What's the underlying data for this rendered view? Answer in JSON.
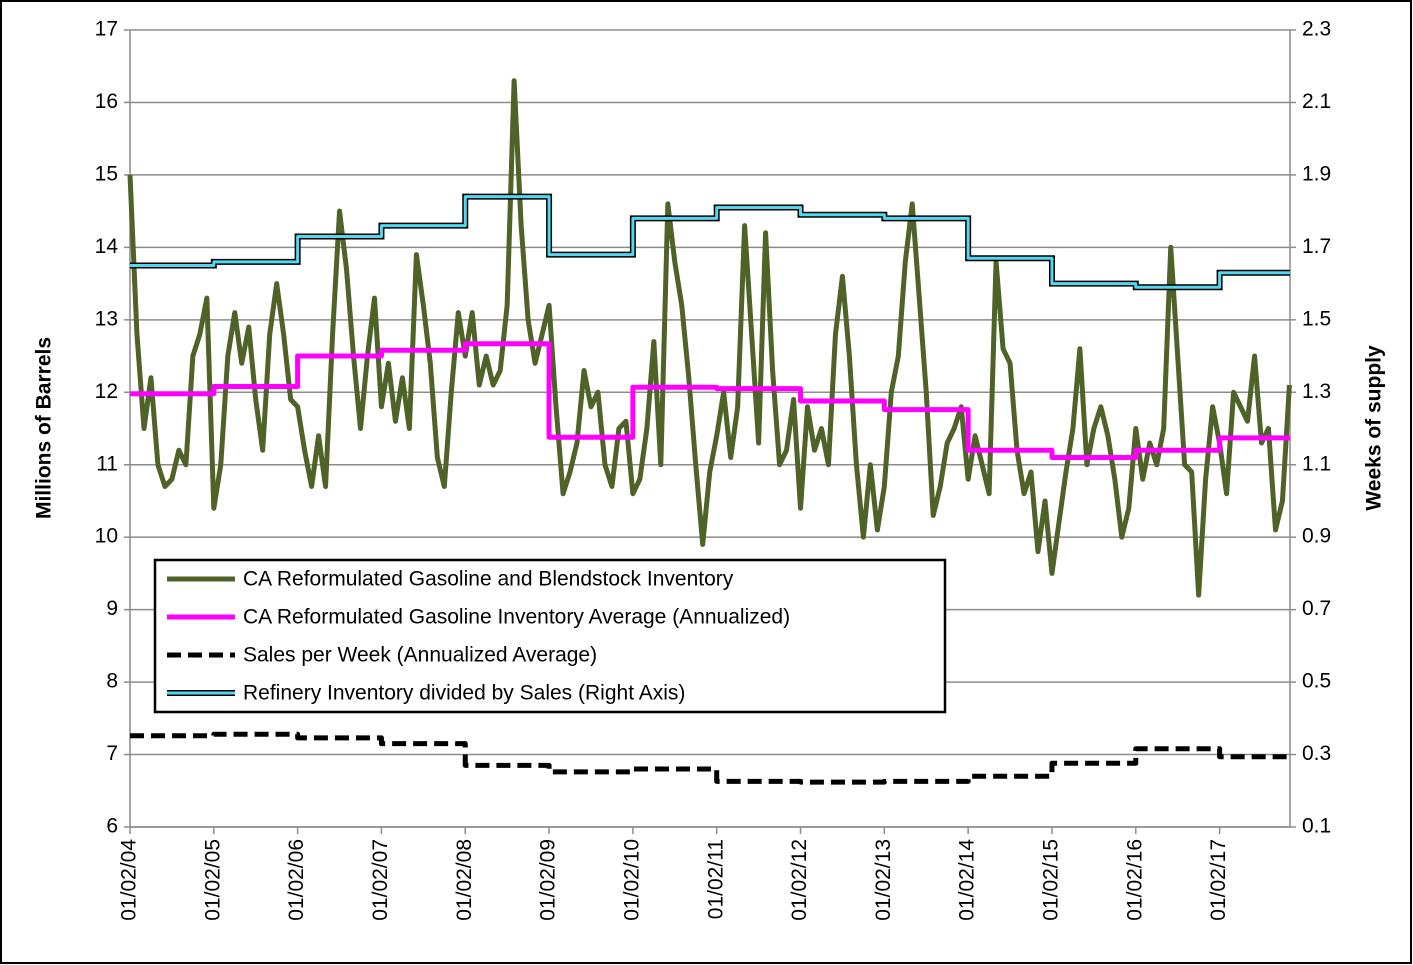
{
  "chart_data": {
    "type": "line",
    "y_label": "Millions of Barrels",
    "y2_label": "Weeks of supply",
    "xlim": [
      2004,
      2017.84
    ],
    "xticks": [
      {
        "value": 2004,
        "label": "01/02/04"
      },
      {
        "value": 2005,
        "label": "01/02/05"
      },
      {
        "value": 2006,
        "label": "01/02/06"
      },
      {
        "value": 2007,
        "label": "01/02/07"
      },
      {
        "value": 2008,
        "label": "01/02/08"
      },
      {
        "value": 2009,
        "label": "01/02/09"
      },
      {
        "value": 2010,
        "label": "01/02/10"
      },
      {
        "value": 2011,
        "label": "01/02/11"
      },
      {
        "value": 2012,
        "label": "01/02/12"
      },
      {
        "value": 2013,
        "label": "01/02/13"
      },
      {
        "value": 2014,
        "label": "01/02/14"
      },
      {
        "value": 2015,
        "label": "01/02/15"
      },
      {
        "value": 2016,
        "label": "01/02/16"
      },
      {
        "value": 2017,
        "label": "01/02/17"
      }
    ],
    "ylim": [
      6,
      17
    ],
    "yticks": [
      6,
      7,
      8,
      9,
      10,
      11,
      12,
      13,
      14,
      15,
      16,
      17
    ],
    "y2lim": [
      0.1,
      2.3
    ],
    "y2ticks": [
      0.1,
      0.3,
      0.5,
      0.7,
      0.9,
      1.1,
      1.3,
      1.5,
      1.7,
      1.9,
      2.1,
      2.3
    ],
    "grid": true,
    "legend": "lower left",
    "series": [
      {
        "name": "CA Reformulated Gasoline and Blendstock Inventory",
        "color": "#4f6228",
        "width": 5,
        "x": [
          2004,
          2004.083,
          2004.167,
          2004.25,
          2004.333,
          2004.417,
          2004.5,
          2004.583,
          2004.667,
          2004.75,
          2004.833,
          2004.917,
          2005,
          2005.083,
          2005.167,
          2005.25,
          2005.333,
          2005.417,
          2005.5,
          2005.583,
          2005.667,
          2005.75,
          2005.833,
          2005.917,
          2006,
          2006.083,
          2006.167,
          2006.25,
          2006.333,
          2006.417,
          2006.5,
          2006.583,
          2006.667,
          2006.75,
          2006.833,
          2006.917,
          2007,
          2007.083,
          2007.167,
          2007.25,
          2007.333,
          2007.417,
          2007.5,
          2007.583,
          2007.667,
          2007.75,
          2007.833,
          2007.917,
          2008,
          2008.083,
          2008.167,
          2008.25,
          2008.333,
          2008.417,
          2008.5,
          2008.583,
          2008.667,
          2008.75,
          2008.833,
          2008.917,
          2009,
          2009.083,
          2009.167,
          2009.25,
          2009.333,
          2009.417,
          2009.5,
          2009.583,
          2009.667,
          2009.75,
          2009.833,
          2009.917,
          2010,
          2010.083,
          2010.167,
          2010.25,
          2010.333,
          2010.417,
          2010.5,
          2010.583,
          2010.667,
          2010.75,
          2010.833,
          2010.917,
          2011,
          2011.083,
          2011.167,
          2011.25,
          2011.333,
          2011.417,
          2011.5,
          2011.583,
          2011.667,
          2011.75,
          2011.833,
          2011.917,
          2012,
          2012.083,
          2012.167,
          2012.25,
          2012.333,
          2012.417,
          2012.5,
          2012.583,
          2012.667,
          2012.75,
          2012.833,
          2012.917,
          2013,
          2013.083,
          2013.167,
          2013.25,
          2013.333,
          2013.417,
          2013.5,
          2013.583,
          2013.667,
          2013.75,
          2013.833,
          2013.917,
          2014,
          2014.083,
          2014.167,
          2014.25,
          2014.333,
          2014.417,
          2014.5,
          2014.583,
          2014.667,
          2014.75,
          2014.833,
          2014.917,
          2015,
          2015.083,
          2015.167,
          2015.25,
          2015.333,
          2015.417,
          2015.5,
          2015.583,
          2015.667,
          2015.75,
          2015.833,
          2015.917,
          2016,
          2016.083,
          2016.167,
          2016.25,
          2016.333,
          2016.417,
          2016.5,
          2016.583,
          2016.667,
          2016.75,
          2016.833,
          2016.917,
          2017,
          2017.083,
          2017.167,
          2017.25,
          2017.333,
          2017.417,
          2017.5,
          2017.583,
          2017.667,
          2017.75,
          2017.833
        ],
        "values": [
          15.0,
          12.8,
          11.5,
          12.2,
          11.0,
          10.7,
          10.8,
          11.2,
          11.0,
          12.5,
          12.8,
          13.3,
          10.4,
          11.0,
          12.5,
          13.1,
          12.4,
          12.9,
          11.9,
          11.2,
          12.8,
          13.5,
          12.8,
          11.9,
          11.8,
          11.2,
          10.7,
          11.4,
          10.7,
          12.8,
          14.5,
          13.7,
          12.5,
          11.5,
          12.5,
          13.3,
          11.8,
          12.4,
          11.6,
          12.2,
          11.5,
          13.9,
          13.2,
          12.4,
          11.1,
          10.7,
          12.0,
          13.1,
          12.5,
          13.1,
          12.1,
          12.5,
          12.1,
          12.3,
          13.2,
          16.3,
          14.3,
          13.0,
          12.4,
          12.8,
          13.2,
          11.8,
          10.6,
          10.9,
          11.3,
          12.3,
          11.8,
          12.0,
          11.0,
          10.7,
          11.5,
          11.6,
          10.6,
          10.8,
          11.5,
          12.7,
          11.0,
          14.6,
          13.8,
          13.2,
          12.2,
          11.0,
          9.9,
          10.9,
          11.4,
          12.0,
          11.1,
          11.8,
          14.3,
          12.8,
          11.3,
          14.2,
          12.3,
          11.0,
          11.2,
          11.9,
          10.4,
          11.8,
          11.2,
          11.5,
          11.0,
          12.8,
          13.6,
          12.5,
          11.0,
          10.0,
          11.0,
          10.1,
          10.7,
          12.0,
          12.5,
          13.8,
          14.6,
          13.3,
          12.0,
          10.3,
          10.7,
          11.3,
          11.5,
          11.8,
          10.8,
          11.4,
          11.0,
          10.6,
          13.8,
          12.6,
          12.4,
          11.2,
          10.6,
          10.9,
          9.8,
          10.5,
          9.5,
          10.2,
          10.9,
          11.5,
          12.6,
          11.0,
          11.5,
          11.8,
          11.4,
          10.8,
          10.0,
          10.4,
          11.5,
          10.8,
          11.3,
          11.0,
          11.5,
          14.0,
          12.5,
          11.0,
          10.9,
          9.2,
          10.8,
          11.8,
          11.3,
          10.6,
          12.0,
          11.8,
          11.6,
          12.5,
          11.3,
          11.5,
          10.1,
          10.5,
          12.1
        ]
      },
      {
        "name": "CA Reformulated Gasoline Inventory Average (Annualized)",
        "color": "#ff00ff",
        "width": 5,
        "step": "post",
        "x": [
          2004,
          2005,
          2006,
          2007,
          2008,
          2009,
          2010,
          2011,
          2012,
          2013,
          2014,
          2015,
          2016,
          2017
        ],
        "values": [
          11.98,
          12.08,
          12.5,
          12.58,
          12.67,
          11.38,
          12.07,
          12.05,
          11.88,
          11.76,
          11.2,
          11.1,
          11.2,
          11.37
        ]
      },
      {
        "name": "Sales per Week (Annualized Average)",
        "color": "#000000",
        "width": 5,
        "step": "post",
        "dash": true,
        "x": [
          2004,
          2005,
          2006,
          2007,
          2008,
          2009,
          2010,
          2011,
          2012,
          2013,
          2014,
          2015,
          2016,
          2017
        ],
        "values": [
          7.26,
          7.28,
          7.23,
          7.15,
          6.85,
          6.76,
          6.8,
          6.63,
          6.62,
          6.63,
          6.7,
          6.88,
          7.08,
          6.97
        ]
      },
      {
        "name": "Refinery Inventory divided by Sales (Right Axis)",
        "color": "#4fd8f0",
        "width": 3,
        "step": "post",
        "outline": "#000000",
        "axis": "y2",
        "x": [
          2004,
          2005,
          2006,
          2007,
          2008,
          2009,
          2010,
          2011,
          2012,
          2013,
          2014,
          2015,
          2016,
          2017
        ],
        "values": [
          1.65,
          1.66,
          1.73,
          1.76,
          1.84,
          1.68,
          1.78,
          1.81,
          1.79,
          1.78,
          1.67,
          1.6,
          1.59,
          1.63
        ]
      }
    ]
  }
}
